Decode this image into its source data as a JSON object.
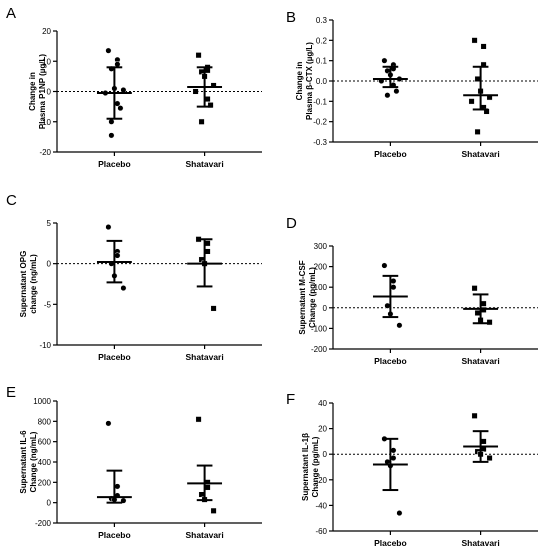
{
  "figure": {
    "background": "#ffffff",
    "ink": "#000000"
  },
  "chart_data": [
    {
      "panel": "A",
      "type": "scatter",
      "categories": [
        "Placebo",
        "Shatavari"
      ],
      "ylabel": [
        "Change in",
        "Plasma P1NP (µg/L)"
      ],
      "ylim": [
        -20,
        20
      ],
      "yticks": [
        -20,
        -10,
        0,
        10,
        20
      ],
      "ytick_labels": [
        "-20",
        "-10",
        "0",
        "10",
        "20"
      ],
      "zero_line": "dense-dotted",
      "series": [
        {
          "name": "Placebo",
          "marker": "circle",
          "values": [
            13.5,
            10.5,
            9,
            7.5,
            1,
            0.5,
            -0.5,
            -4,
            -5.5,
            -10,
            -14.5
          ],
          "mean": -0.5,
          "sd_upper": 8,
          "sd_lower": -9
        },
        {
          "name": "Shatavari",
          "marker": "square",
          "values": [
            12,
            8,
            7,
            6.5,
            5,
            2,
            0,
            -2.5,
            -4.5,
            -10
          ],
          "mean": 1.5,
          "sd_upper": 8,
          "sd_lower": -5
        }
      ]
    },
    {
      "panel": "B",
      "type": "scatter",
      "categories": [
        "Placebo",
        "Shatavari"
      ],
      "ylabel": [
        "Change in",
        "Plasma β-CTX (µg/L)"
      ],
      "ylim": [
        -0.3,
        0.3
      ],
      "yticks": [
        -0.3,
        -0.2,
        -0.1,
        0,
        0.1,
        0.2,
        0.3
      ],
      "ytick_labels": [
        "-0.3",
        "-0.2",
        "-0.1",
        "0.0",
        "0.1",
        "0.2",
        "0.3"
      ],
      "zero_line": "dense-dotted",
      "series": [
        {
          "name": "Placebo",
          "marker": "circle",
          "values": [
            0.1,
            0.08,
            0.06,
            0.05,
            0.03,
            0.01,
            0,
            -0.02,
            -0.05,
            -0.07
          ],
          "mean": 0.01,
          "sd_upper": 0.07,
          "sd_lower": -0.03
        },
        {
          "name": "Shatavari",
          "marker": "square",
          "values": [
            0.2,
            0.17,
            0.08,
            0.01,
            -0.05,
            -0.08,
            -0.1,
            -0.13,
            -0.15,
            -0.25
          ],
          "mean": -0.07,
          "sd_upper": 0.07,
          "sd_lower": -0.14
        }
      ]
    },
    {
      "panel": "C",
      "type": "scatter",
      "categories": [
        "Placebo",
        "Shatavari"
      ],
      "ylabel": [
        "Supernatant OPG",
        "change (ng/mL)"
      ],
      "ylim": [
        -10,
        5
      ],
      "yticks": [
        -10,
        -5,
        0,
        5
      ],
      "ytick_labels": [
        "-10",
        "-5",
        "0",
        "5"
      ],
      "zero_line": "sparse-dotted",
      "series": [
        {
          "name": "Placebo",
          "marker": "circle",
          "values": [
            4.5,
            1.5,
            1,
            0,
            -1.5,
            -3
          ],
          "mean": 0.2,
          "sd_upper": 2.8,
          "sd_lower": -2.3
        },
        {
          "name": "Shatavari",
          "marker": "square",
          "values": [
            3,
            2.5,
            1.5,
            0.5,
            0,
            -5.5
          ],
          "mean": 0,
          "sd_upper": 3,
          "sd_lower": -2.8
        }
      ]
    },
    {
      "panel": "D",
      "type": "scatter",
      "categories": [
        "Placebo",
        "Shatavari"
      ],
      "ylabel": [
        "Supernatant M-CSF",
        "Change (pg/mL)"
      ],
      "ylim": [
        -200,
        300
      ],
      "yticks": [
        -200,
        -100,
        0,
        100,
        200,
        300
      ],
      "ytick_labels": [
        "-200",
        "-100",
        "0",
        "100",
        "200",
        "300"
      ],
      "zero_line": "sparse-dotted",
      "series": [
        {
          "name": "Placebo",
          "marker": "circle",
          "values": [
            205,
            130,
            100,
            10,
            -30,
            -85
          ],
          "mean": 55,
          "sd_upper": 155,
          "sd_lower": -45
        },
        {
          "name": "Shatavari",
          "marker": "square",
          "values": [
            95,
            20,
            -10,
            -25,
            -60,
            -70
          ],
          "mean": -5,
          "sd_upper": 65,
          "sd_lower": -75
        }
      ]
    },
    {
      "panel": "E",
      "type": "scatter",
      "categories": [
        "Placebo",
        "Shatavari"
      ],
      "ylabel": [
        "Supernatant IL-6",
        "Change (ng/mL)"
      ],
      "ylim": [
        -200,
        1000
      ],
      "yticks": [
        -200,
        0,
        200,
        400,
        600,
        800,
        1000
      ],
      "ytick_labels": [
        "-200",
        "0",
        "200",
        "400",
        "600",
        "800",
        "1000"
      ],
      "zero_line": "none",
      "series": [
        {
          "name": "Placebo",
          "marker": "circle",
          "values": [
            780,
            160,
            70,
            40,
            30,
            20
          ],
          "mean": 55,
          "sd_upper": 315,
          "sd_lower": 0
        },
        {
          "name": "Shatavari",
          "marker": "square",
          "values": [
            820,
            200,
            150,
            80,
            30,
            -80
          ],
          "mean": 190,
          "sd_upper": 365,
          "sd_lower": 25
        }
      ]
    },
    {
      "panel": "F",
      "type": "scatter",
      "categories": [
        "Placebo",
        "Shatavari"
      ],
      "ylabel": [
        "Supernatant IL-1β",
        "Change (pg/mL)"
      ],
      "ylim": [
        -60,
        40
      ],
      "yticks": [
        -60,
        -40,
        -20,
        0,
        20,
        40
      ],
      "ytick_labels": [
        "-60",
        "-40",
        "-20",
        "0",
        "20",
        "40"
      ],
      "zero_line": "sparse-dotted",
      "series": [
        {
          "name": "Placebo",
          "marker": "circle",
          "values": [
            12,
            3,
            -3,
            -6,
            -9,
            -46
          ],
          "mean": -8,
          "sd_upper": 12,
          "sd_lower": -28
        },
        {
          "name": "Shatavari",
          "marker": "square",
          "values": [
            30,
            10,
            4,
            2,
            0,
            -3
          ],
          "mean": 6,
          "sd_upper": 18,
          "sd_lower": -6
        }
      ]
    }
  ]
}
